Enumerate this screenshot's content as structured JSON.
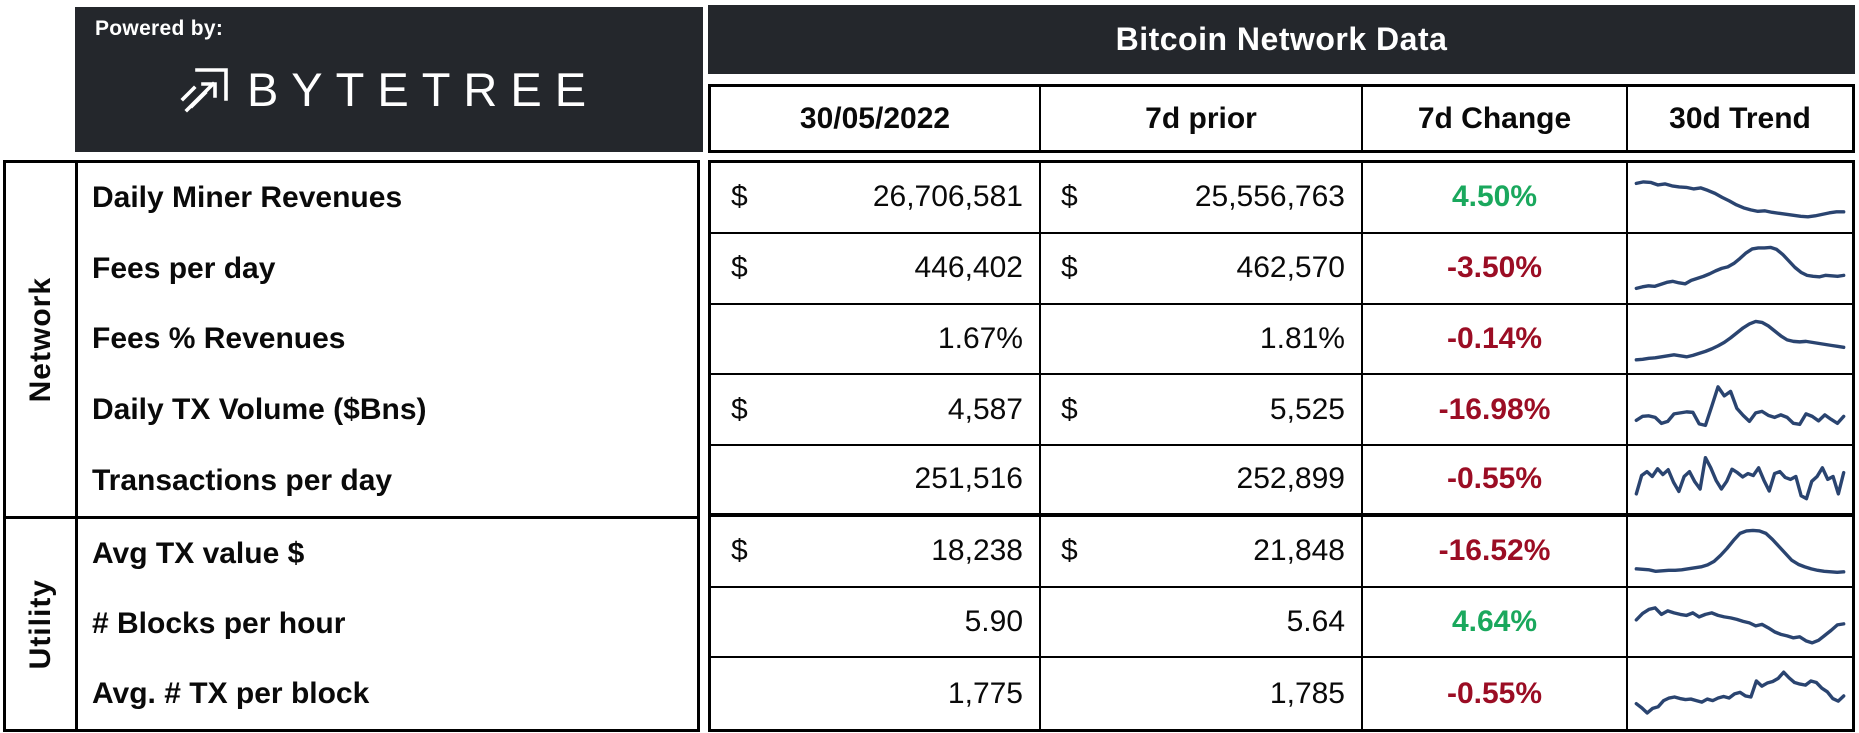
{
  "branding": {
    "powered_by": "Powered by:",
    "logo_text": "BYTETREE"
  },
  "colors": {
    "dark_bg": "#24272c",
    "positive": "#1aa85d",
    "negative": "#9b0d24",
    "spark": "#2a4470",
    "border": "#000000"
  },
  "chart_data": {
    "type": "table",
    "title": "Bitcoin Network Data",
    "columns": [
      "30/05/2022",
      "7d prior",
      "7d Change",
      "30d Trend"
    ],
    "trend_note": "trend arrays are 30d sparklines, values normalized 0-100 (100 = top of cell)",
    "groups": [
      {
        "name": "Network",
        "rows": [
          {
            "label": "Daily Miner Revenues",
            "current_prefix": "$",
            "current": "26,706,581",
            "prior_prefix": "$",
            "prior": "25,556,763",
            "change": "4.50%",
            "change_direction": "up",
            "trend": [
              78,
              81,
              80,
              75,
              77,
              73,
              71,
              70,
              67,
              69,
              64,
              58,
              50,
              43,
              35,
              29,
              25,
              22,
              23,
              20,
              18,
              16,
              14,
              12,
              11,
              13,
              16,
              19,
              21,
              21
            ]
          },
          {
            "label": "Fees per day",
            "current_prefix": "$",
            "current": "446,402",
            "prior_prefix": "$",
            "prior": "462,570",
            "change": "-3.50%",
            "change_direction": "down",
            "trend": [
              10,
              13,
              15,
              14,
              18,
              22,
              24,
              21,
              19,
              26,
              30,
              34,
              39,
              45,
              50,
              53,
              60,
              70,
              81,
              89,
              91,
              91,
              92,
              88,
              78,
              65,
              52,
              42,
              36,
              34,
              33,
              36,
              35,
              34,
              36
            ]
          },
          {
            "label": "Fees % Revenues",
            "current_prefix": "",
            "current": "1.67%",
            "prior_prefix": "",
            "prior": "1.81%",
            "change": "-0.14%",
            "change_direction": "down",
            "trend": [
              9,
              10,
              12,
              13,
              15,
              17,
              19,
              17,
              15,
              18,
              22,
              26,
              31,
              37,
              44,
              53,
              63,
              73,
              81,
              86,
              84,
              77,
              67,
              57,
              49,
              46,
              45,
              46,
              44,
              42,
              40,
              38,
              36,
              34
            ]
          },
          {
            "label": "Daily TX Volume ($Bns)",
            "current_prefix": "$",
            "current": "4,587",
            "prior_prefix": "$",
            "prior": "5,525",
            "change": "-16.98%",
            "change_direction": "down",
            "trend": [
              28,
              36,
              37,
              34,
              22,
              26,
              41,
              43,
              45,
              44,
              21,
              18,
              56,
              95,
              77,
              86,
              52,
              38,
              26,
              43,
              46,
              38,
              34,
              39,
              34,
              22,
              20,
              41,
              36,
              27,
              39,
              30,
              22,
              36
            ]
          },
          {
            "label": "Transactions per day",
            "current_prefix": "",
            "current": "251,516",
            "prior_prefix": "",
            "prior": "252,899",
            "change": "-0.55%",
            "change_direction": "down",
            "trend": [
              20,
              58,
              66,
              56,
              72,
              60,
              70,
              44,
              25,
              56,
              66,
              45,
              30,
              95,
              74,
              48,
              30,
              46,
              71,
              64,
              55,
              62,
              58,
              74,
              48,
              26,
              62,
              66,
              54,
              50,
              56,
              16,
              10,
              46,
              56,
              74,
              50,
              56,
              20,
              64
            ]
          }
        ]
      },
      {
        "name": "Utility",
        "rows": [
          {
            "label": "Avg TX value $",
            "current_prefix": "$",
            "current": "18,238",
            "prior_prefix": "$",
            "prior": "21,848",
            "change": "-16.52%",
            "change_direction": "down",
            "trend": [
              15,
              14,
              13,
              10,
              11,
              12,
              12,
              13,
              15,
              17,
              19,
              23,
              30,
              42,
              56,
              72,
              86,
              91,
              92,
              91,
              86,
              74,
              60,
              46,
              32,
              24,
              19,
              15,
              12,
              10,
              9,
              8,
              9
            ]
          },
          {
            "label": "# Blocks per hour",
            "current_prefix": "",
            "current": "5.90",
            "prior_prefix": "",
            "prior": "5.64",
            "change": "4.64%",
            "change_direction": "up",
            "trend": [
              55,
              68,
              76,
              79,
              66,
              73,
              69,
              66,
              64,
              69,
              61,
              66,
              69,
              64,
              61,
              59,
              56,
              52,
              49,
              43,
              46,
              39,
              31,
              26,
              23,
              19,
              21,
              13,
              9,
              14,
              24,
              34,
              45,
              47
            ]
          },
          {
            "label": "Avg. # TX per block",
            "current_prefix": "",
            "current": "1,775",
            "prior_prefix": "",
            "prior": "1,785",
            "change": "-0.55%",
            "change_direction": "down",
            "trend": [
              30,
              22,
              12,
              21,
              24,
              36,
              41,
              43,
              40,
              38,
              39,
              36,
              33,
              39,
              36,
              41,
              44,
              41,
              49,
              52,
              45,
              43,
              74,
              64,
              70,
              73,
              79,
              91,
              80,
              71,
              68,
              66,
              74,
              71,
              60,
              53,
              40,
              35,
              45
            ]
          }
        ]
      }
    ]
  }
}
